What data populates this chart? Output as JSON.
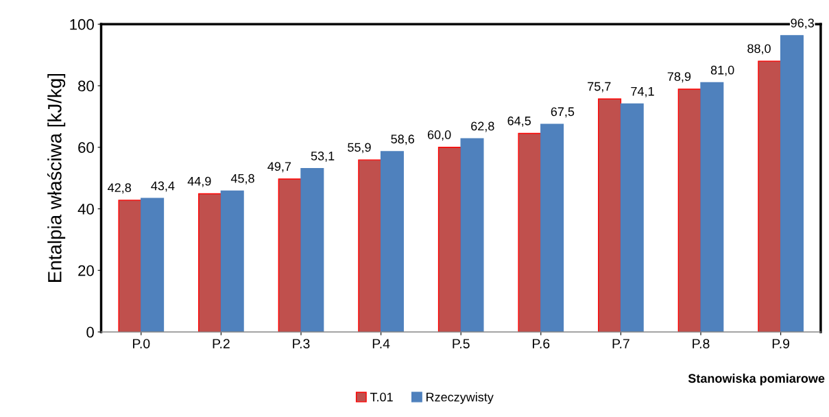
{
  "chart_data": {
    "type": "bar",
    "categories": [
      "P.0",
      "P.2",
      "P.3",
      "P.4",
      "P.5",
      "P.6",
      "P.7",
      "P.8",
      "P.9"
    ],
    "series": [
      {
        "name": "T.01",
        "color": "#c0504d",
        "values": [
          42.8,
          44.9,
          49.7,
          55.9,
          60.0,
          64.5,
          75.7,
          78.9,
          88.0
        ],
        "value_labels": [
          "42,8",
          "44,9",
          "49,7",
          "55,9",
          "60,0",
          "64,5",
          "75,7",
          "78,9",
          "88,0"
        ]
      },
      {
        "name": "Rzeczywisty",
        "color": "#4f81bd",
        "values": [
          43.4,
          45.8,
          53.1,
          58.6,
          62.8,
          67.5,
          74.1,
          81.0,
          96.3
        ],
        "value_labels": [
          "43,4",
          "45,8",
          "53,1",
          "58,6",
          "62,8",
          "67,5",
          "74,1",
          "81,0",
          "96,3"
        ]
      }
    ],
    "ylabel": "Entalpia właściwa [kJ/kg]",
    "xlabel": "Stanowiska pomiarowe",
    "ylim": [
      0,
      100
    ],
    "yticks": [
      0,
      20,
      40,
      60,
      80,
      100
    ],
    "legend": "bottom"
  }
}
